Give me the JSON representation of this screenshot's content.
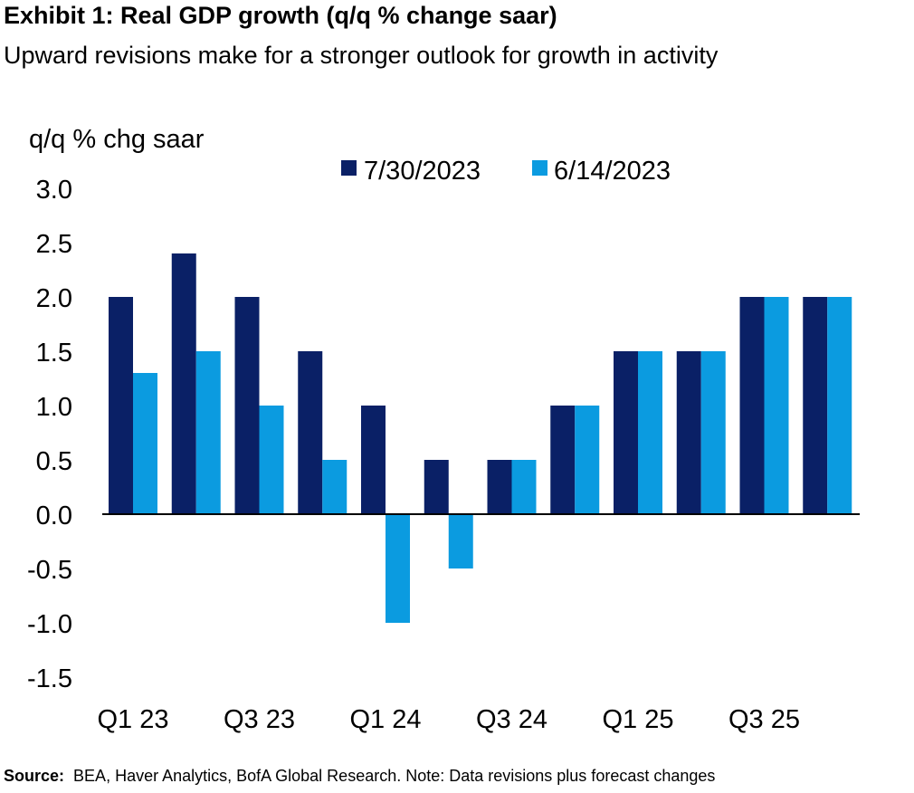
{
  "header": {
    "title": "Exhibit 1: Real GDP growth (q/q % change saar)",
    "subtitle": "Upward revisions make for a stronger outlook for growth in activity"
  },
  "footer": {
    "source_label": "Source:",
    "source_text": "BEA, Haver Analytics, BofA Global Research. Note:  Data revisions plus forecast changes"
  },
  "colors": {
    "series_1": "#0a2066",
    "series_2": "#0b9be0",
    "axis": "#000000"
  },
  "chart_data": {
    "type": "bar",
    "title": "Exhibit 1: Real GDP growth (q/q % change saar)",
    "subtitle": "Upward revisions make for a stronger outlook for growth in activity",
    "ylabel": "q/q % chg saar",
    "xlabel": "",
    "ylim": [
      -1.5,
      3.0
    ],
    "yticks": [
      3.0,
      2.5,
      2.0,
      1.5,
      1.0,
      0.5,
      0.0,
      -0.5,
      -1.0,
      -1.5
    ],
    "ytick_labels": [
      "3.0",
      "2.5",
      "2.0",
      "1.5",
      "1.0",
      "0.5",
      "0.0",
      "-0.5",
      "-1.0",
      "-1.5"
    ],
    "categories": [
      "Q1 23",
      "Q2 23",
      "Q3 23",
      "Q4 23",
      "Q1 24",
      "Q2 24",
      "Q3 24",
      "Q4 24",
      "Q1 25",
      "Q2 25",
      "Q3 25",
      "Q4 25"
    ],
    "xtick_labels": [
      {
        "index": 0,
        "label": "Q1 23"
      },
      {
        "index": 2,
        "label": "Q3 23"
      },
      {
        "index": 4,
        "label": "Q1 24"
      },
      {
        "index": 6,
        "label": "Q3 24"
      },
      {
        "index": 8,
        "label": "Q1 25"
      },
      {
        "index": 10,
        "label": "Q3 25"
      }
    ],
    "series": [
      {
        "name": "7/30/2023",
        "values": [
          2.0,
          2.4,
          2.0,
          1.5,
          1.0,
          0.5,
          0.5,
          1.0,
          1.5,
          1.5,
          2.0,
          2.0
        ]
      },
      {
        "name": "6/14/2023",
        "values": [
          1.3,
          1.5,
          1.0,
          0.5,
          -1.0,
          -0.5,
          0.5,
          1.0,
          1.5,
          1.5,
          2.0,
          2.0
        ]
      }
    ],
    "legend_position": "top-right",
    "grid": false
  }
}
